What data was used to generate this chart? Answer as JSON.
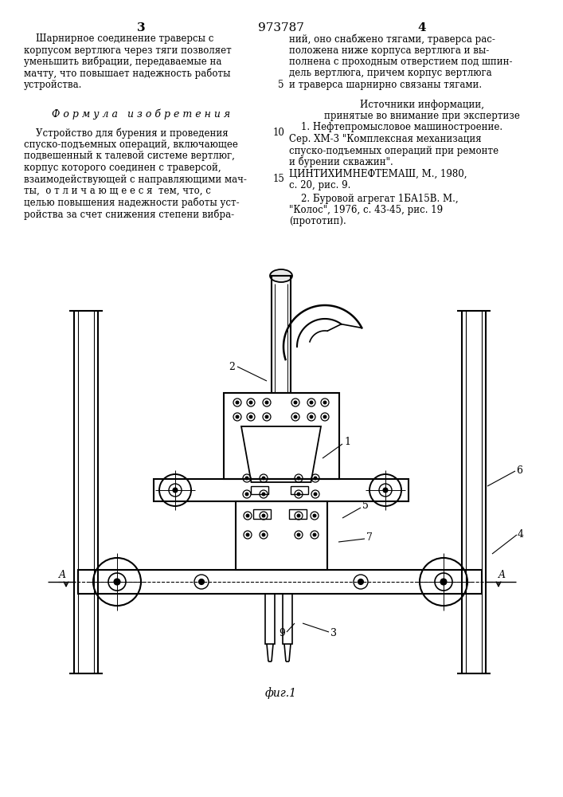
{
  "bg_color": "#ffffff",
  "page_number_left": "3",
  "page_number_center": "973787",
  "page_number_right": "4",
  "left_col_para1": [
    "    Шарнирное соединение траверсы с",
    "корпусом вертлюга через тяги позволяет",
    "уменьшить вибрации, передаваемые на",
    "мачту, что повышает надежность работы",
    "устройства."
  ],
  "right_col_para1": [
    "ний, оно снабжено тягами, траверса рас-",
    "положена ниже корпуса вертлюга и вы-",
    "полнена с проходным отверстием под шпин-",
    "дель вертлюга, причем корпус вертлюга",
    "и траверса шарнирно связаны тягами."
  ],
  "right_line5": "5",
  "formula_heading": "Ф о р м у л а   и з о б р е т е н и я",
  "formula_text": [
    "    Устройство для бурения и проведения",
    "спуско-подъемных операций, включающее",
    "подвешенный к талевой системе вертлюг,",
    "корпус которого соединен с траверсой,",
    "взаимодействующей с направляющими мач-",
    "ты,  о т л и ч а ю щ е е с я  тем, что, с",
    "целью повышения надежности работы уст-",
    "ройства за счет снижения степени вибра-"
  ],
  "formula_line10": "10",
  "formula_line15": "15",
  "sources_heading": "Источники информации,",
  "sources_subheading": "принятые во внимание при экспертизе",
  "source1_lines": [
    "    1. Нефтепромысловое машиностроение.",
    "Сер. ХМ-3 \"Комплексная механизация",
    "спуско-подъемных операций при ремонте",
    "и бурении скважин\".",
    "ЦИНТИХИМНЕФТЕМАШ, М., 1980,",
    "с. 20, рис. 9."
  ],
  "source2_lines": [
    "    2. Буровой агрегат 1БА15В. М.,",
    "\"Колос\", 1976, с. 43-45, рис. 19",
    "(прототип)."
  ],
  "fig_caption": "фиг.1"
}
